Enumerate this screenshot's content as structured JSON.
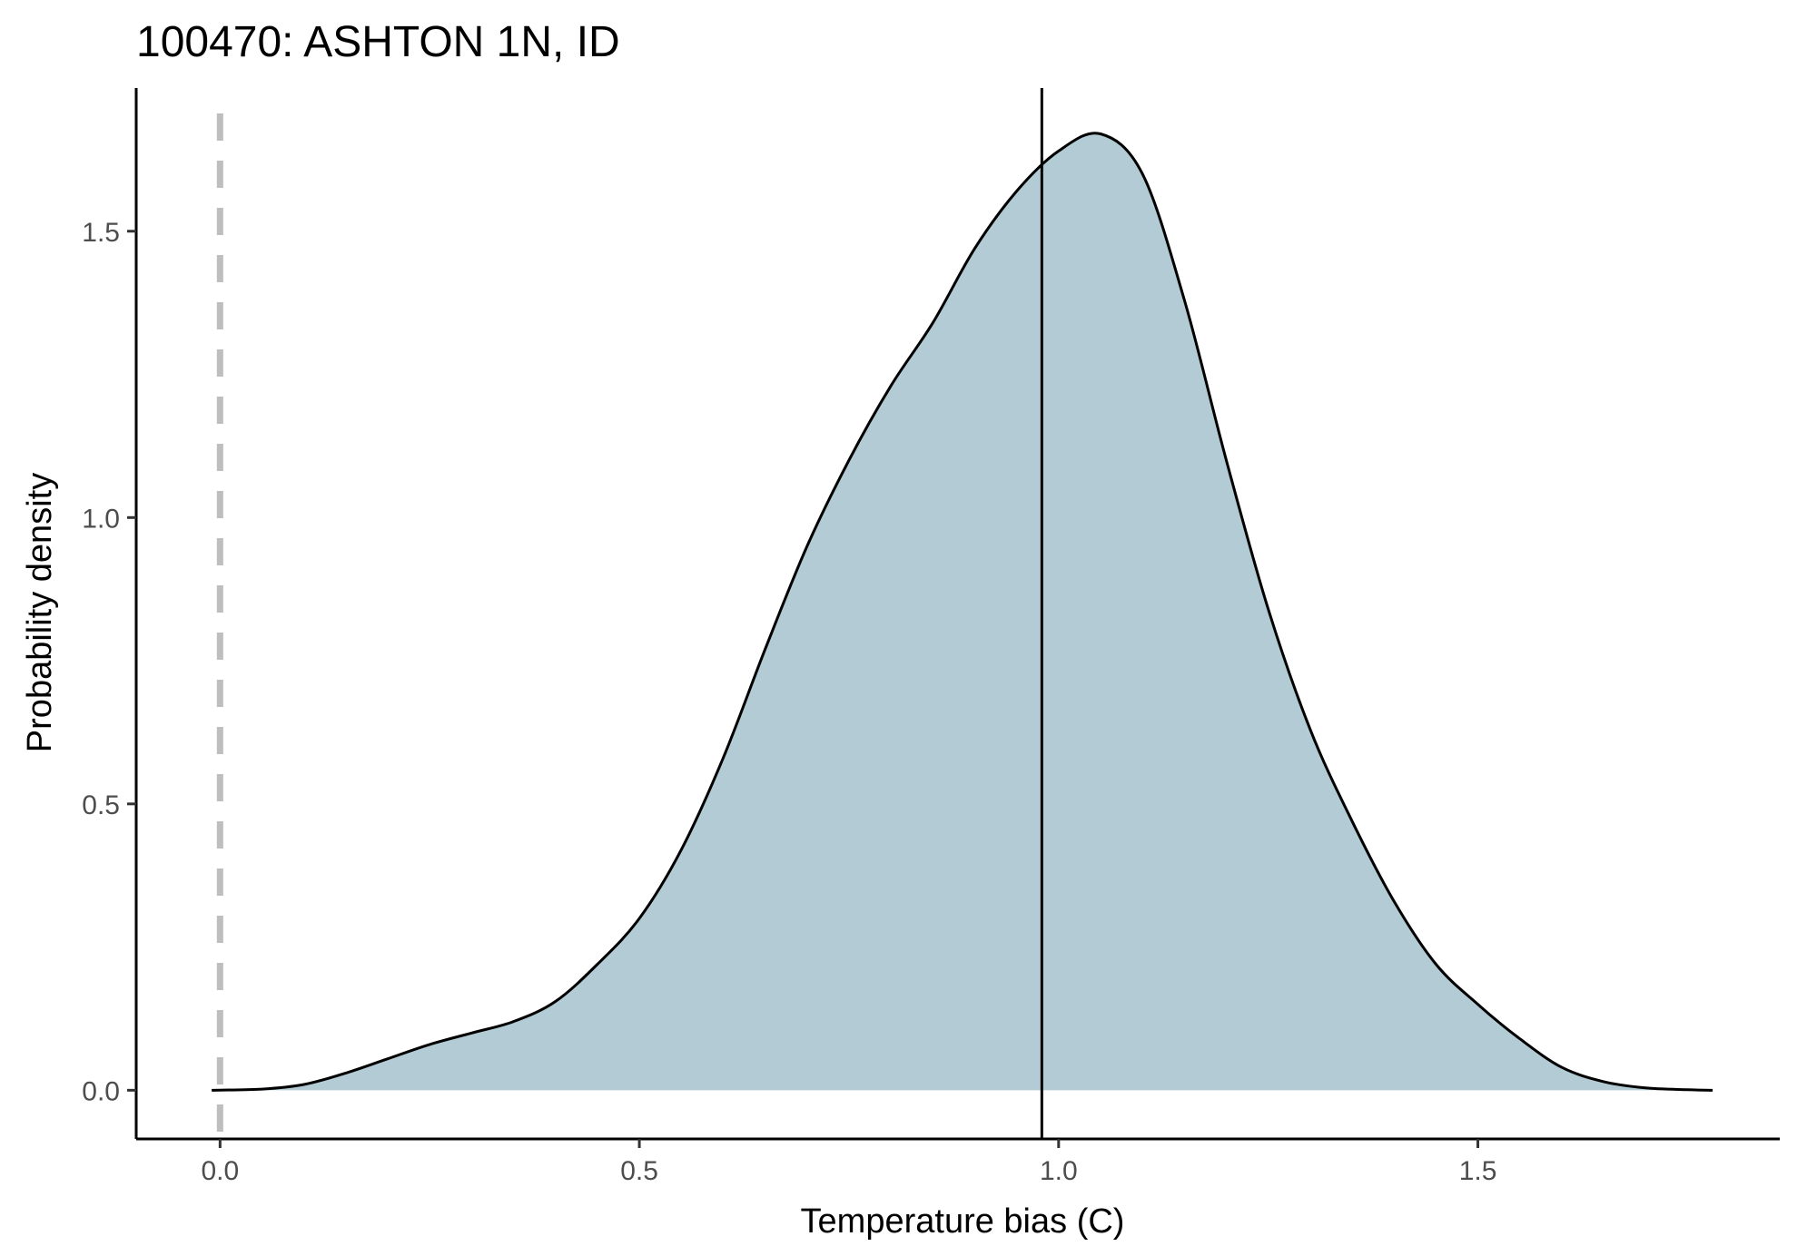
{
  "chart_data": {
    "type": "area",
    "title": "100470: ASHTON 1N, ID",
    "xlabel": "Temperature bias (C)",
    "ylabel": "Probability density",
    "xlim": [
      -0.1,
      1.86
    ],
    "ylim": [
      -0.085,
      1.75
    ],
    "x_ticks": [
      0.0,
      0.5,
      1.0,
      1.5
    ],
    "x_tick_labels": [
      "0.0",
      "0.5",
      "1.0",
      "1.5"
    ],
    "y_ticks": [
      0.0,
      0.5,
      1.0,
      1.5
    ],
    "y_tick_labels": [
      "0.0",
      "0.5",
      "1.0",
      "1.5"
    ],
    "grid": false,
    "fill_color": "#b3cbd4",
    "line_color": "#000000",
    "reference_line_color": "#bebebe",
    "reference_line_x": 0.0,
    "mean_line_x": 0.98,
    "x": [
      -0.01,
      0.05,
      0.1,
      0.15,
      0.2,
      0.25,
      0.3,
      0.35,
      0.4,
      0.45,
      0.5,
      0.55,
      0.6,
      0.65,
      0.7,
      0.75,
      0.8,
      0.85,
      0.9,
      0.95,
      1.0,
      1.05,
      1.1,
      1.15,
      1.2,
      1.25,
      1.3,
      1.35,
      1.4,
      1.45,
      1.5,
      1.55,
      1.6,
      1.65,
      1.7,
      1.75,
      1.78
    ],
    "y": [
      0.0,
      0.002,
      0.01,
      0.03,
      0.055,
      0.08,
      0.1,
      0.12,
      0.155,
      0.22,
      0.3,
      0.42,
      0.58,
      0.77,
      0.95,
      1.1,
      1.23,
      1.34,
      1.47,
      1.57,
      1.64,
      1.67,
      1.6,
      1.38,
      1.1,
      0.84,
      0.63,
      0.47,
      0.33,
      0.22,
      0.15,
      0.09,
      0.04,
      0.015,
      0.004,
      0.001,
      0.0
    ]
  }
}
